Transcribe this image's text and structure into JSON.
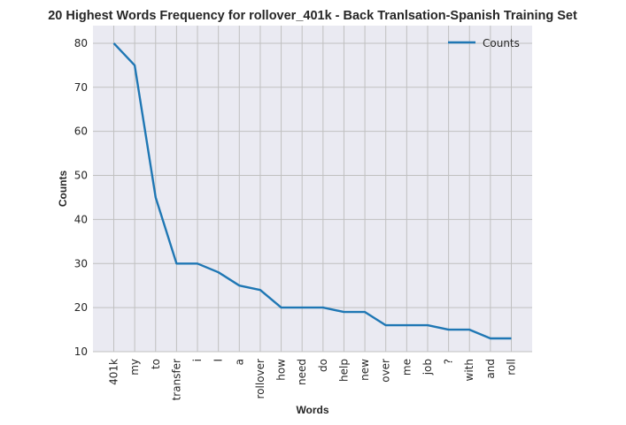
{
  "chart_data": {
    "type": "line",
    "title": "20 Highest Words Frequency for rollover_401k - Back Tranlsation-Spanish Training Set",
    "xlabel": "Words",
    "ylabel": "Counts",
    "categories": [
      "401k",
      "my",
      "to",
      "transfer",
      "i",
      "I",
      "a",
      "rollover",
      "how",
      "need",
      "do",
      "help",
      "new",
      "over",
      "me",
      "job",
      "?",
      "with",
      "and",
      "roll"
    ],
    "series": [
      {
        "name": "Counts",
        "values": [
          80,
          75,
          45,
          30,
          30,
          28,
          25,
          24,
          20,
          20,
          20,
          19,
          19,
          16,
          16,
          16,
          15,
          15,
          13,
          13
        ]
      }
    ],
    "ylim": [
      10,
      84
    ],
    "yticks": [
      10,
      20,
      30,
      40,
      50,
      60,
      70,
      80
    ],
    "grid": true,
    "legend_position": "top-right",
    "colors": {
      "line": "#1f77b4",
      "plot_background": "#eaeaf2",
      "grid": "#c0c0c0"
    }
  }
}
